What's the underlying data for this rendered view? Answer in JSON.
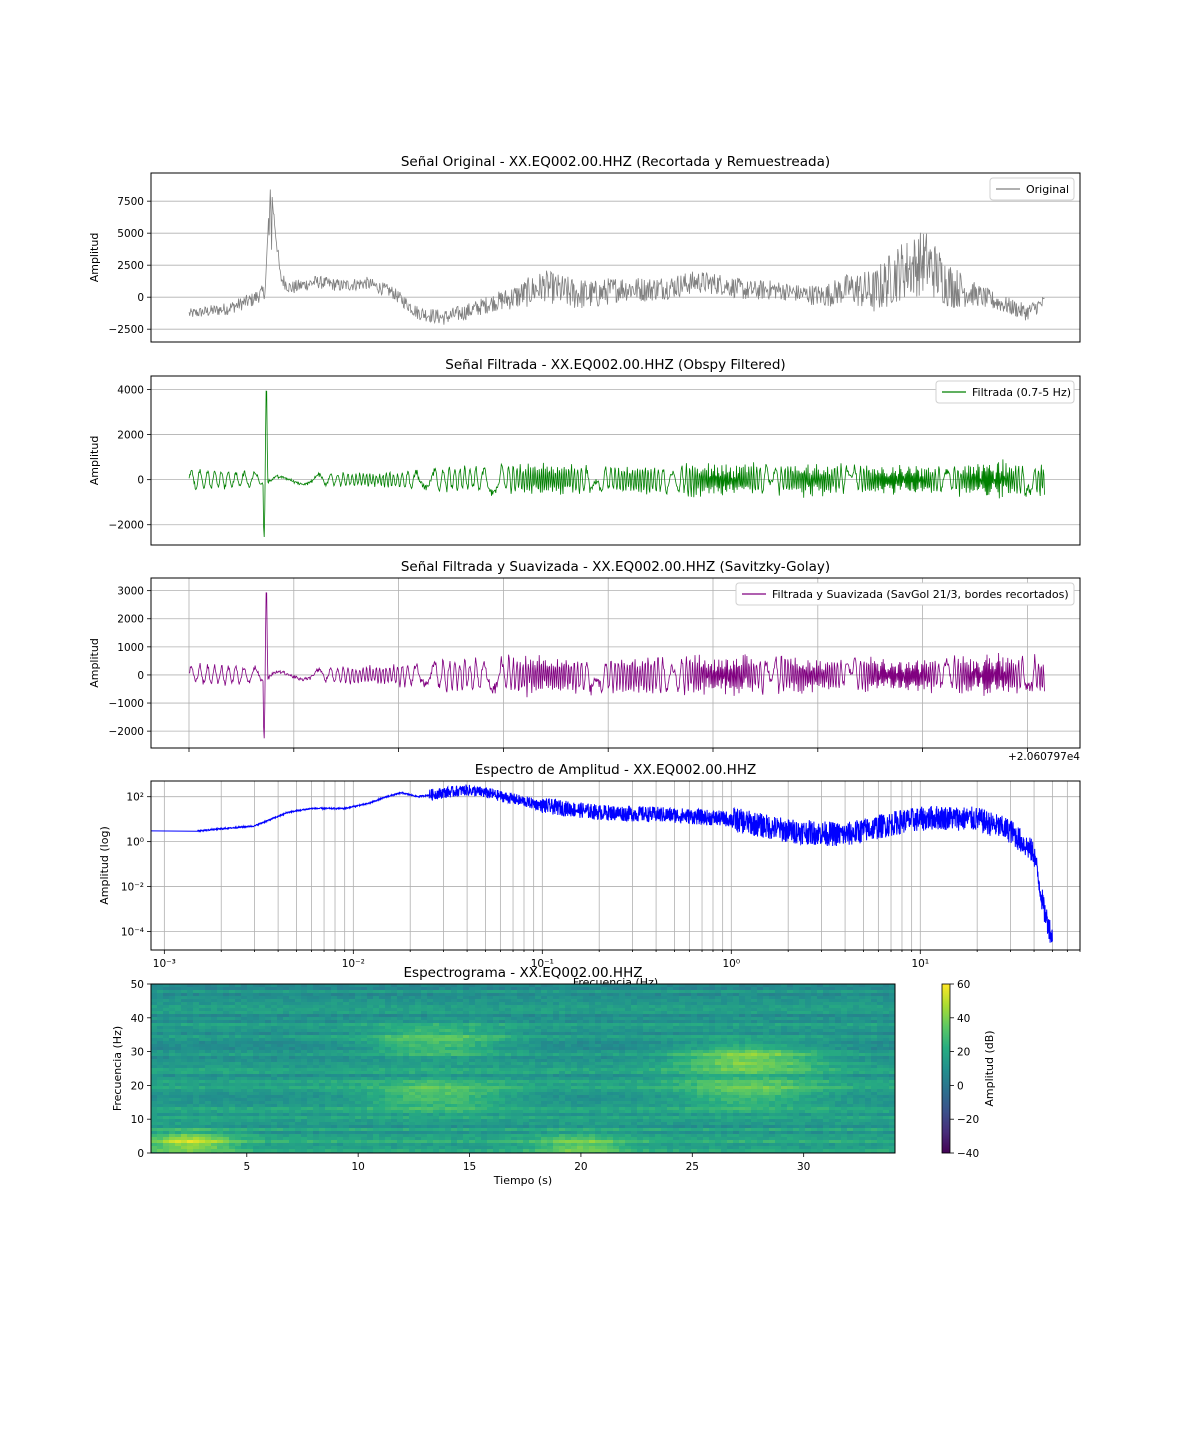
{
  "chart_data": [
    {
      "type": "line",
      "title": "Señal Original - XX.EQ002.00.HHZ (Recortada y Remuestreada)",
      "xlabel": "",
      "ylabel": "Amplitud",
      "ylim": [
        -3500,
        9700
      ],
      "yticks": [
        -2500,
        0,
        2500,
        5000,
        7500
      ],
      "ytick_labels": [
        "−2500",
        "0",
        "2500",
        "5000",
        "7500"
      ],
      "grid": true,
      "legend": "top-right",
      "series": [
        {
          "name": "Original",
          "color": "#808080",
          "x": [
            0,
            1.5,
            2.5,
            3.0,
            3.2,
            3.6,
            4.0,
            5,
            6,
            7,
            8,
            9,
            10,
            11,
            12,
            13,
            14,
            15,
            16,
            17,
            18,
            19,
            20,
            21,
            22,
            23,
            24,
            25,
            26,
            27,
            28,
            29,
            30,
            31,
            32,
            33,
            33.7
          ],
          "y": [
            -1300,
            -900,
            -200,
            500,
            9000,
            1500,
            700,
            1200,
            900,
            1100,
            400,
            -1200,
            -1600,
            -1100,
            -400,
            100,
            900,
            300,
            200,
            700,
            600,
            800,
            1200,
            1000,
            500,
            600,
            300,
            100,
            700,
            400,
            2000,
            2800,
            900,
            200,
            -500,
            -1200,
            -400
          ]
        }
      ],
      "envelope": {
        "x": [
          0,
          3,
          5,
          8,
          10,
          12,
          13.5,
          15,
          17,
          20,
          22,
          24,
          25,
          26,
          27,
          28,
          29,
          30,
          31,
          32,
          33.7
        ],
        "amp": [
          400,
          600,
          500,
          500,
          600,
          700,
          1200,
          1300,
          1000,
          900,
          800,
          700,
          900,
          1200,
          1800,
          2300,
          2600,
          1800,
          900,
          700,
          600
        ]
      }
    },
    {
      "type": "line",
      "title": "Señal Filtrada - XX.EQ002.00.HHZ (Obspy Filtered)",
      "xlabel": "",
      "ylabel": "Amplitud",
      "ylim": [
        -2900,
        4600
      ],
      "yticks": [
        -2000,
        0,
        2000,
        4000
      ],
      "ytick_labels": [
        "−2000",
        "0",
        "2000",
        "4000"
      ],
      "grid": true,
      "legend": "top-right",
      "series": [
        {
          "name": "Filtrada (0.7-5 Hz)",
          "color": "#008000",
          "spike": {
            "t": 3.0,
            "max": 4300,
            "min": -2600
          },
          "envelope": {
            "x": [
              0,
              2,
              4,
              6,
              8,
              10,
              12,
              14,
              16,
              18,
              20,
              22,
              24,
              26,
              28,
              30,
              32,
              33.7
            ],
            "amp": [
              500,
              400,
              300,
              300,
              350,
              550,
              650,
              700,
              600,
              650,
              700,
              700,
              700,
              650,
              600,
              650,
              800,
              700
            ]
          }
        }
      ]
    },
    {
      "type": "line",
      "title": "Señal Filtrada y Suavizada - XX.EQ002.00.HHZ (Savitzky-Golay)",
      "xlabel": "",
      "ylabel": "Amplitud",
      "ylim": [
        -2600,
        3450
      ],
      "yticks": [
        -2000,
        -1000,
        0,
        1000,
        2000,
        3000
      ],
      "ytick_labels": [
        "−2000",
        "−1000",
        "0",
        "1000",
        "2000",
        "3000"
      ],
      "offset_label": "+2.060797e4",
      "grid": true,
      "legend": "top-right",
      "series": [
        {
          "name": "Filtrada y Suavizada (SavGol 21/3, bordes recortados)",
          "color": "#800080",
          "spike": {
            "t": 3.0,
            "max": 3200,
            "min": -2300
          },
          "envelope": {
            "x": [
              0,
              2,
              4,
              6,
              8,
              10,
              12,
              14,
              16,
              18,
              20,
              22,
              24,
              26,
              28,
              30,
              32,
              33.7
            ],
            "amp": [
              400,
              350,
              250,
              300,
              350,
              600,
              650,
              700,
              650,
              700,
              700,
              700,
              650,
              600,
              600,
              650,
              800,
              600
            ]
          }
        }
      ]
    },
    {
      "type": "line",
      "title": "Espectro de Amplitud - XX.EQ002.00.HHZ",
      "xlabel": "Frecuencia (Hz)",
      "ylabel": "Amplitud (log)",
      "xscale": "log",
      "yscale": "log",
      "xlim": [
        0.00085,
        70
      ],
      "ylim": [
        1.5e-05,
        500
      ],
      "xtick_labels": [
        "10⁻³",
        "10⁻²",
        "10⁻¹",
        "10⁰",
        "10¹"
      ],
      "ytick_labels": [
        "10⁻⁴",
        "10⁻²",
        "10⁰",
        "10²"
      ],
      "grid": true,
      "series": [
        {
          "name": "",
          "color": "#0000ff",
          "x": [
            0.00085,
            0.0015,
            0.003,
            0.0045,
            0.006,
            0.009,
            0.012,
            0.015,
            0.018,
            0.022,
            0.03,
            0.04,
            0.05,
            0.07,
            0.1,
            0.2,
            0.5,
            1,
            2,
            4,
            8,
            12,
            20,
            30,
            40,
            45,
            50
          ],
          "y": [
            3,
            3,
            5,
            20,
            30,
            30,
            50,
            100,
            150,
            100,
            150,
            200,
            150,
            80,
            40,
            20,
            15,
            10,
            3,
            2,
            8,
            12,
            10,
            3,
            0.3,
            0.001,
            5e-05
          ]
        }
      ]
    },
    {
      "type": "heatmap",
      "title": "Espectrograma - XX.EQ002.00.HHZ",
      "xlabel": "Tiempo (s)",
      "ylabel": "Frecuencia (Hz)",
      "xlim": [
        0.7,
        34.1
      ],
      "ylim": [
        0,
        50
      ],
      "xticks": [
        5,
        10,
        15,
        20,
        25,
        30
      ],
      "yticks": [
        0,
        10,
        20,
        30,
        40,
        50
      ],
      "colormap": "viridis",
      "colorbar": {
        "label": "Amplitud (dB)",
        "range": [
          -40,
          60
        ],
        "ticks": [
          -40,
          -20,
          0,
          20,
          40,
          60
        ],
        "tick_labels": [
          "−40",
          "−20",
          "0",
          "20",
          "40",
          "60"
        ]
      },
      "hotspots": [
        {
          "t": 2.5,
          "f": 3,
          "db": 50
        },
        {
          "t": 13.5,
          "f": 33,
          "db": 42
        },
        {
          "t": 13.5,
          "f": 17,
          "db": 40
        },
        {
          "t": 27.5,
          "f": 28,
          "db": 48
        },
        {
          "t": 27.5,
          "f": 18,
          "db": 40
        },
        {
          "t": 20,
          "f": 2,
          "db": 40
        }
      ]
    }
  ]
}
